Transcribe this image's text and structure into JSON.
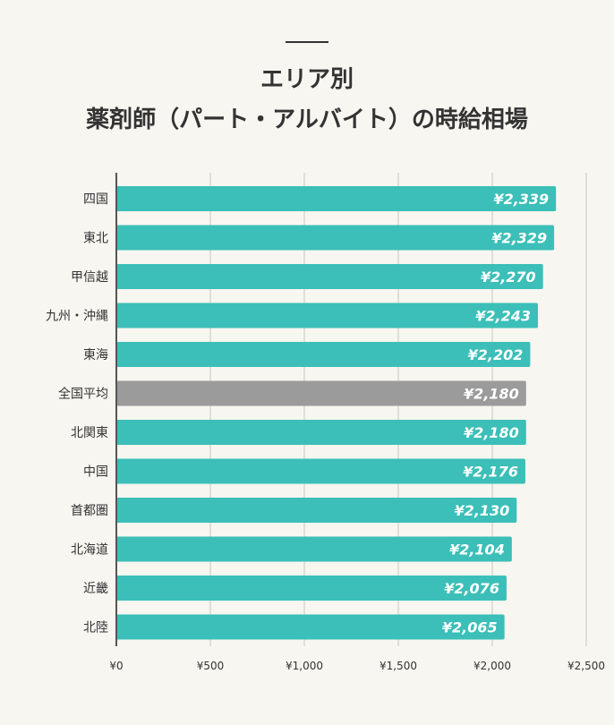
{
  "chart_data": {
    "type": "bar",
    "orientation": "horizontal",
    "title_lines": [
      "エリア別",
      "薬剤師（パート・アルバイト）の時給相場"
    ],
    "categories": [
      "四国",
      "東北",
      "甲信越",
      "九州・沖縄",
      "東海",
      "全国平均",
      "北関東",
      "中国",
      "首都圏",
      "北海道",
      "近畿",
      "北陸"
    ],
    "values": [
      2339,
      2329,
      2270,
      2243,
      2202,
      2180,
      2180,
      2176,
      2130,
      2104,
      2076,
      2065
    ],
    "data_labels": [
      "¥2,339",
      "¥2,329",
      "¥2,270",
      "¥2,243",
      "¥2,202",
      "¥2,180",
      "¥2,180",
      "¥2,176",
      "¥2,130",
      "¥2,104",
      "¥2,076",
      "¥2,065"
    ],
    "xlim": [
      0,
      2500
    ],
    "xticks": [
      0,
      500,
      1000,
      1500,
      2000,
      2500
    ],
    "xtick_labels": [
      "¥0",
      "¥500",
      "¥1,000",
      "¥1,500",
      "¥2,000",
      "¥2,500"
    ],
    "grid": true,
    "highlight_category": "全国平均",
    "colors": {
      "bar": "#3bbfb8",
      "highlight": "#9b9b9b",
      "label": "#ffffff",
      "background": "#f8f6f0"
    }
  }
}
